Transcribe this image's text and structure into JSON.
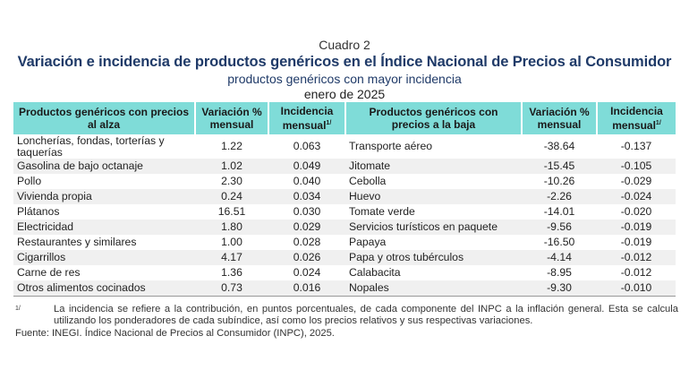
{
  "caption": "Cuadro 2",
  "title": "Variación e incidencia de productos genéricos en el Índice Nacional de Precios al Consumidor",
  "subtitle": "productos genéricos con mayor incidencia",
  "period": "enero de 2025",
  "headers": {
    "up_product": "Productos genéricos con precios al alza",
    "up_var": "Variación % mensual",
    "up_inc": "Incidencia mensual",
    "down_product": "Productos genéricos con precios a la baja",
    "down_var": "Variación % mensual",
    "down_inc": "Incidencia mensual",
    "footnote_mark": "1/"
  },
  "rows": [
    {
      "up": "Loncherías, fondas, torterías y taquerías",
      "uv": "1.22",
      "ui": "0.063",
      "down": "Transporte aéreo",
      "dv": "-38.64",
      "di": "-0.137"
    },
    {
      "up": "Gasolina de bajo octanaje",
      "uv": "1.02",
      "ui": "0.049",
      "down": "Jitomate",
      "dv": "-15.45",
      "di": "-0.105"
    },
    {
      "up": "Pollo",
      "uv": "2.30",
      "ui": "0.040",
      "down": "Cebolla",
      "dv": "-10.26",
      "di": "-0.029"
    },
    {
      "up": "Vivienda propia",
      "uv": "0.24",
      "ui": "0.034",
      "down": "Huevo",
      "dv": "-2.26",
      "di": "-0.024"
    },
    {
      "up": "Plátanos",
      "uv": "16.51",
      "ui": "0.030",
      "down": "Tomate verde",
      "dv": "-14.01",
      "di": "-0.020"
    },
    {
      "up": "Electricidad",
      "uv": "1.80",
      "ui": "0.029",
      "down": "Servicios turísticos en paquete",
      "dv": "-9.56",
      "di": "-0.019"
    },
    {
      "up": "Restaurantes y similares",
      "uv": "1.00",
      "ui": "0.028",
      "down": "Papaya",
      "dv": "-16.50",
      "di": "-0.019"
    },
    {
      "up": "Cigarrillos",
      "uv": "4.17",
      "ui": "0.026",
      "down": "Papa y otros tubérculos",
      "dv": "-4.14",
      "di": "-0.012"
    },
    {
      "up": "Carne de res",
      "uv": "1.36",
      "ui": "0.024",
      "down": "Calabacita",
      "dv": "-8.95",
      "di": "-0.012"
    },
    {
      "up": "Otros alimentos cocinados",
      "uv": "0.73",
      "ui": "0.016",
      "down": "Nopales",
      "dv": "-9.30",
      "di": "-0.010"
    }
  ],
  "footnote": {
    "mark": "1/",
    "text": "La incidencia se refiere a la contribución, en puntos porcentuales, de cada componente del INPC a la inflación general. Esta se calcula utilizando los ponderadores de cada subíndice, así como los precios relativos y sus respectivas variaciones."
  },
  "source": "Fuente: INEGI. Índice Nacional de Precios al Consumidor (INPC), 2025."
}
